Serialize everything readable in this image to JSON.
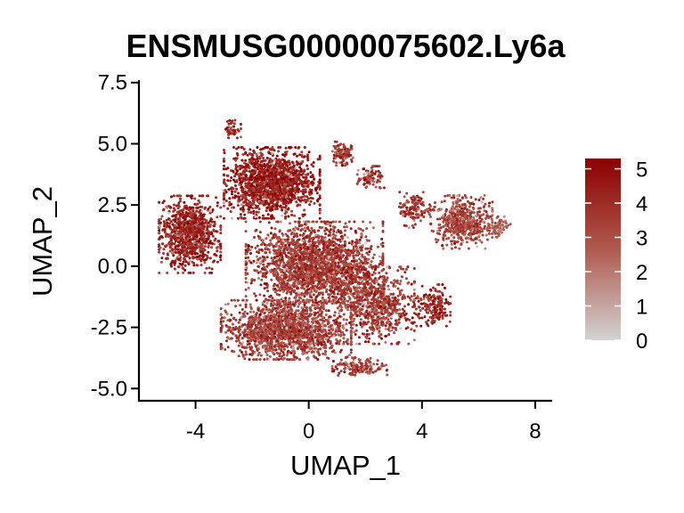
{
  "chart_data": {
    "type": "scatter",
    "title": "ENSMUSG00000075602.Ly6a",
    "xlabel": "UMAP_1",
    "ylabel": "UMAP_2",
    "xlim": [
      -6,
      8.6
    ],
    "ylim": [
      -5.5,
      7.6
    ],
    "x_ticks": [
      -4,
      0,
      4,
      8
    ],
    "x_tick_labels": [
      "-4",
      "0",
      "4",
      "8"
    ],
    "y_ticks": [
      7.5,
      5.0,
      2.5,
      0.0,
      -2.5,
      -5.0
    ],
    "y_tick_labels": [
      "7.5",
      "5.0",
      "2.5",
      "0.0",
      "-2.5",
      "-5.0"
    ],
    "grid": false,
    "legend": {
      "placement": "right",
      "type": "colorbar",
      "min": 0,
      "max": 5.3,
      "ticks": [
        0,
        1,
        2,
        3,
        4,
        5
      ],
      "tick_labels": [
        "0",
        "1",
        "2",
        "3",
        "4",
        "5"
      ],
      "color_low": "#d3d3d3",
      "color_mid": "#b05a4e",
      "color_high": "#8b0000"
    },
    "clusters": [
      {
        "name": "left lobe",
        "center": [
          -4.2,
          1.3
        ],
        "spread": [
          0.9,
          1.3
        ],
        "n": 900,
        "expr_mean": 4.2
      },
      {
        "name": "top upper",
        "center": [
          -1.3,
          3.4
        ],
        "spread": [
          1.4,
          1.2
        ],
        "n": 1500,
        "expr_mean": 4.4
      },
      {
        "name": "top spur",
        "center": [
          -2.7,
          5.6
        ],
        "spread": [
          0.25,
          0.3
        ],
        "n": 40,
        "expr_mean": 4.0
      },
      {
        "name": "top peak",
        "center": [
          1.2,
          4.6
        ],
        "spread": [
          0.3,
          0.4
        ],
        "n": 120,
        "expr_mean": 3.8
      },
      {
        "name": "upper right knob",
        "center": [
          2.2,
          3.6
        ],
        "spread": [
          0.4,
          0.4
        ],
        "n": 90,
        "expr_mean": 3.8
      },
      {
        "name": "center",
        "center": [
          0.2,
          0.0
        ],
        "spread": [
          2.0,
          1.5
        ],
        "n": 2200,
        "expr_mean": 3.6
      },
      {
        "name": "lower body",
        "center": [
          -0.8,
          -2.6
        ],
        "spread": [
          1.9,
          1.0
        ],
        "n": 1600,
        "expr_mean": 3.4
      },
      {
        "name": "lower right",
        "center": [
          2.4,
          -1.6
        ],
        "spread": [
          1.1,
          1.3
        ],
        "n": 700,
        "expr_mean": 3.6
      },
      {
        "name": "bottom tail",
        "center": [
          1.8,
          -4.1
        ],
        "spread": [
          0.8,
          0.3
        ],
        "n": 150,
        "expr_mean": 3.5
      },
      {
        "name": "right arm",
        "center": [
          5.4,
          1.8
        ],
        "spread": [
          0.9,
          0.9
        ],
        "n": 500,
        "expr_mean": 3.2
      },
      {
        "name": "right tip",
        "center": [
          6.7,
          1.6
        ],
        "spread": [
          0.35,
          0.35
        ],
        "n": 70,
        "expr_mean": 2.6
      },
      {
        "name": "arm bridge",
        "center": [
          3.7,
          2.3
        ],
        "spread": [
          0.5,
          0.6
        ],
        "n": 120,
        "expr_mean": 3.6
      },
      {
        "name": "right bulge",
        "center": [
          4.4,
          -1.6
        ],
        "spread": [
          0.5,
          0.7
        ],
        "n": 180,
        "expr_mean": 4.0
      }
    ]
  }
}
